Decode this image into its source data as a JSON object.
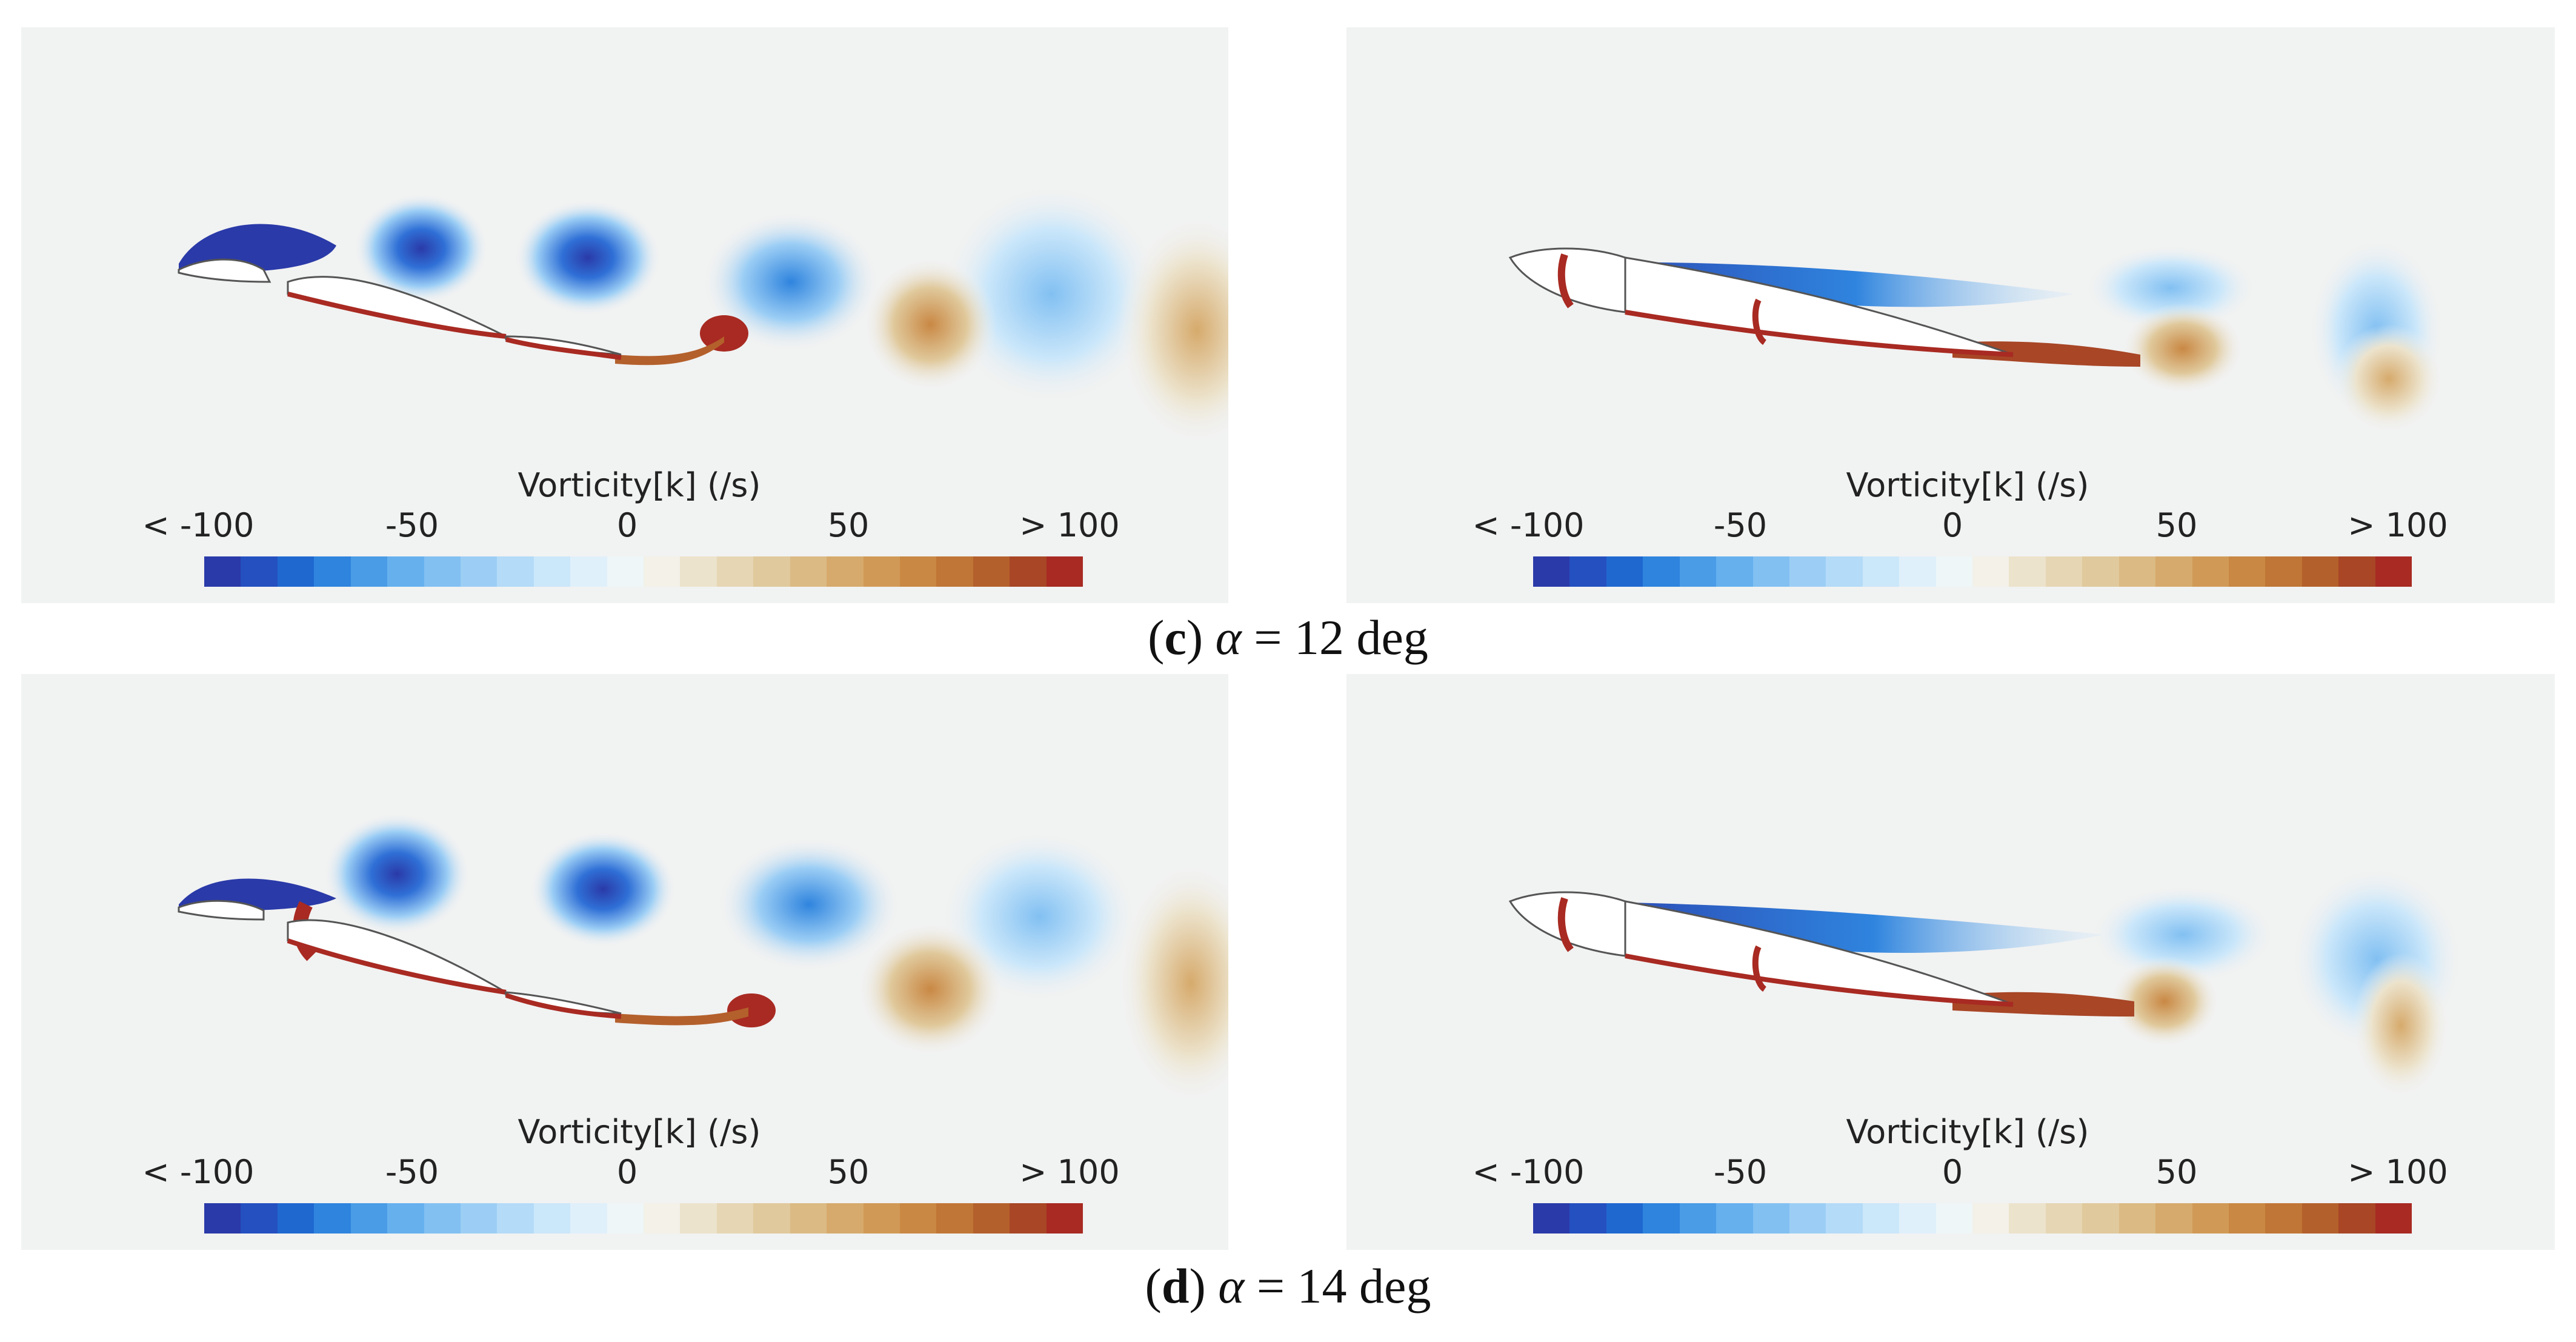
{
  "rows": [
    {
      "caption": {
        "letter": "c",
        "symbol": "α",
        "rest": " = 12 deg"
      },
      "panels": [
        {
          "colorbar": {
            "title": "Vorticity[k] (/s)",
            "ticks": [
              "< -100",
              "-50",
              "0",
              "50",
              "> 100"
            ]
          }
        },
        {
          "colorbar": {
            "title": "Vorticity[k] (/s)",
            "ticks": [
              "< -100",
              "-50",
              "0",
              "50",
              "> 100"
            ]
          }
        }
      ]
    },
    {
      "caption": {
        "letter": "d",
        "symbol": "α",
        "rest": " = 14 deg"
      },
      "panels": [
        {
          "colorbar": {
            "title": "Vorticity[k] (/s)",
            "ticks": [
              "< -100",
              "-50",
              "0",
              "50",
              "> 100"
            ]
          }
        },
        {
          "colorbar": {
            "title": "Vorticity[k] (/s)",
            "ticks": [
              "< -100",
              "-50",
              "0",
              "50",
              "> 100"
            ]
          }
        }
      ]
    }
  ],
  "colormap": [
    "#2a3aa8",
    "#2450c0",
    "#1f68d0",
    "#2f84de",
    "#4a9ce6",
    "#66b0ee",
    "#82c0f2",
    "#9ccef5",
    "#b4dbf8",
    "#cbe7fa",
    "#e0f0fb",
    "#eef6f8",
    "#f3f1e8",
    "#ece3cc",
    "#e6d6b4",
    "#e0c99c",
    "#dbba84",
    "#d6aa6c",
    "#d09a56",
    "#c98844",
    "#c07636",
    "#b4602c",
    "#a84626",
    "#a82a22"
  ],
  "colors": {
    "background": "#f1f2f2",
    "negative": "#2a3aa8",
    "positive": "#a82a22"
  }
}
